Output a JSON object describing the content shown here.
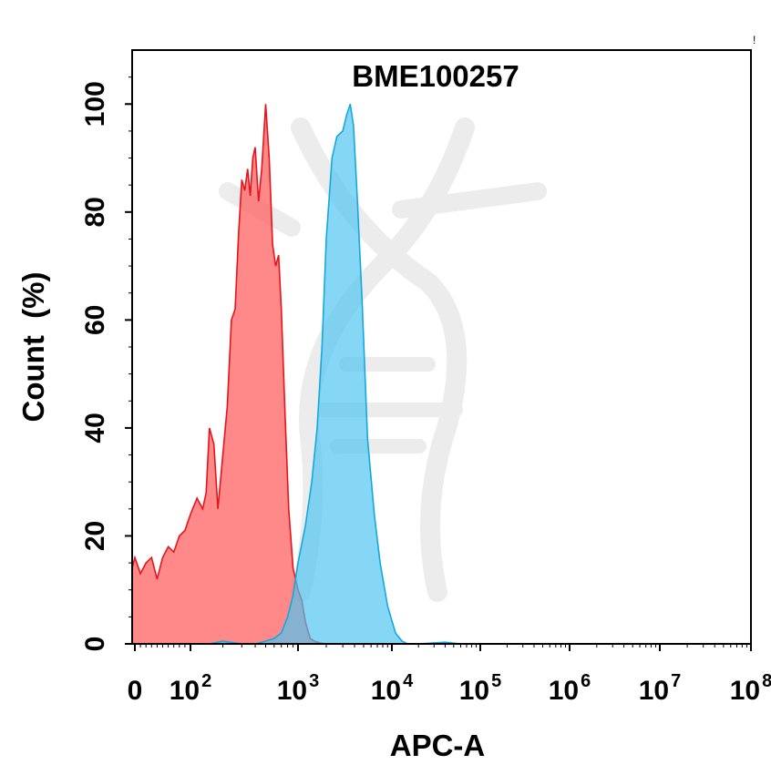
{
  "chart_data": {
    "type": "area",
    "title": "BME100257",
    "xlabel": "APC-A",
    "ylabel": "Count  (%)",
    "xscale": "biexponential",
    "xlim": [
      -20,
      100000000
    ],
    "ylim": [
      0,
      110
    ],
    "x_ticks": [
      {
        "value": 0,
        "base": "0",
        "exp": ""
      },
      {
        "value": 100,
        "base": "10",
        "exp": "2"
      },
      {
        "value": 1000,
        "base": "10",
        "exp": "3"
      },
      {
        "value": 10000,
        "base": "10",
        "exp": "4"
      },
      {
        "value": 100000,
        "base": "10",
        "exp": "5"
      },
      {
        "value": 1000000,
        "base": "10",
        "exp": "6"
      },
      {
        "value": 10000000,
        "base": "10",
        "exp": "7"
      },
      {
        "value": 100000000,
        "base": "10",
        "exp": "8"
      }
    ],
    "y_ticks": [
      0,
      20,
      40,
      60,
      80,
      100
    ],
    "grid": false,
    "legend": "none",
    "series": [
      {
        "color": "#ff5a5a",
        "x": [
          -10,
          0,
          10,
          20,
          30,
          40,
          50,
          60,
          70,
          80,
          90,
          100,
          115,
          130,
          140,
          150,
          165,
          180,
          200,
          220,
          240,
          260,
          280,
          300,
          320,
          340,
          360,
          380,
          400,
          430,
          460,
          500,
          540,
          580,
          620,
          660,
          700,
          760,
          820,
          900,
          1000,
          1100,
          1200,
          1350,
          1500,
          1700,
          1900
        ],
        "y": [
          14,
          16,
          13,
          15,
          16,
          12,
          16,
          18,
          17,
          20,
          21,
          24,
          27,
          25,
          28,
          40,
          37,
          25,
          35,
          44,
          60,
          62,
          76,
          86,
          84,
          88,
          83,
          90,
          92,
          82,
          88,
          100,
          90,
          74,
          70,
          72,
          62,
          42,
          25,
          14,
          10,
          8,
          4,
          1,
          0.5,
          0.2,
          0
        ]
      },
      {
        "color": "#4cc4f0",
        "x": [
          150,
          200,
          300,
          400,
          500,
          600,
          700,
          800,
          900,
          1000,
          1200,
          1400,
          1600,
          1800,
          2000,
          2300,
          2600,
          3000,
          3300,
          3600,
          3900,
          4300,
          4800,
          5500,
          6500,
          7500,
          9000,
          11000,
          13000,
          15000,
          17000,
          20000,
          40000,
          60000
        ],
        "y": [
          0,
          0.5,
          0,
          0,
          0.5,
          1,
          2,
          5,
          9,
          15,
          22,
          30,
          40,
          55,
          75,
          90,
          94,
          95,
          98,
          100,
          96,
          82,
          64,
          38,
          24,
          15,
          7,
          2,
          0.5,
          0,
          0,
          0,
          0.3,
          0
        ]
      }
    ]
  }
}
